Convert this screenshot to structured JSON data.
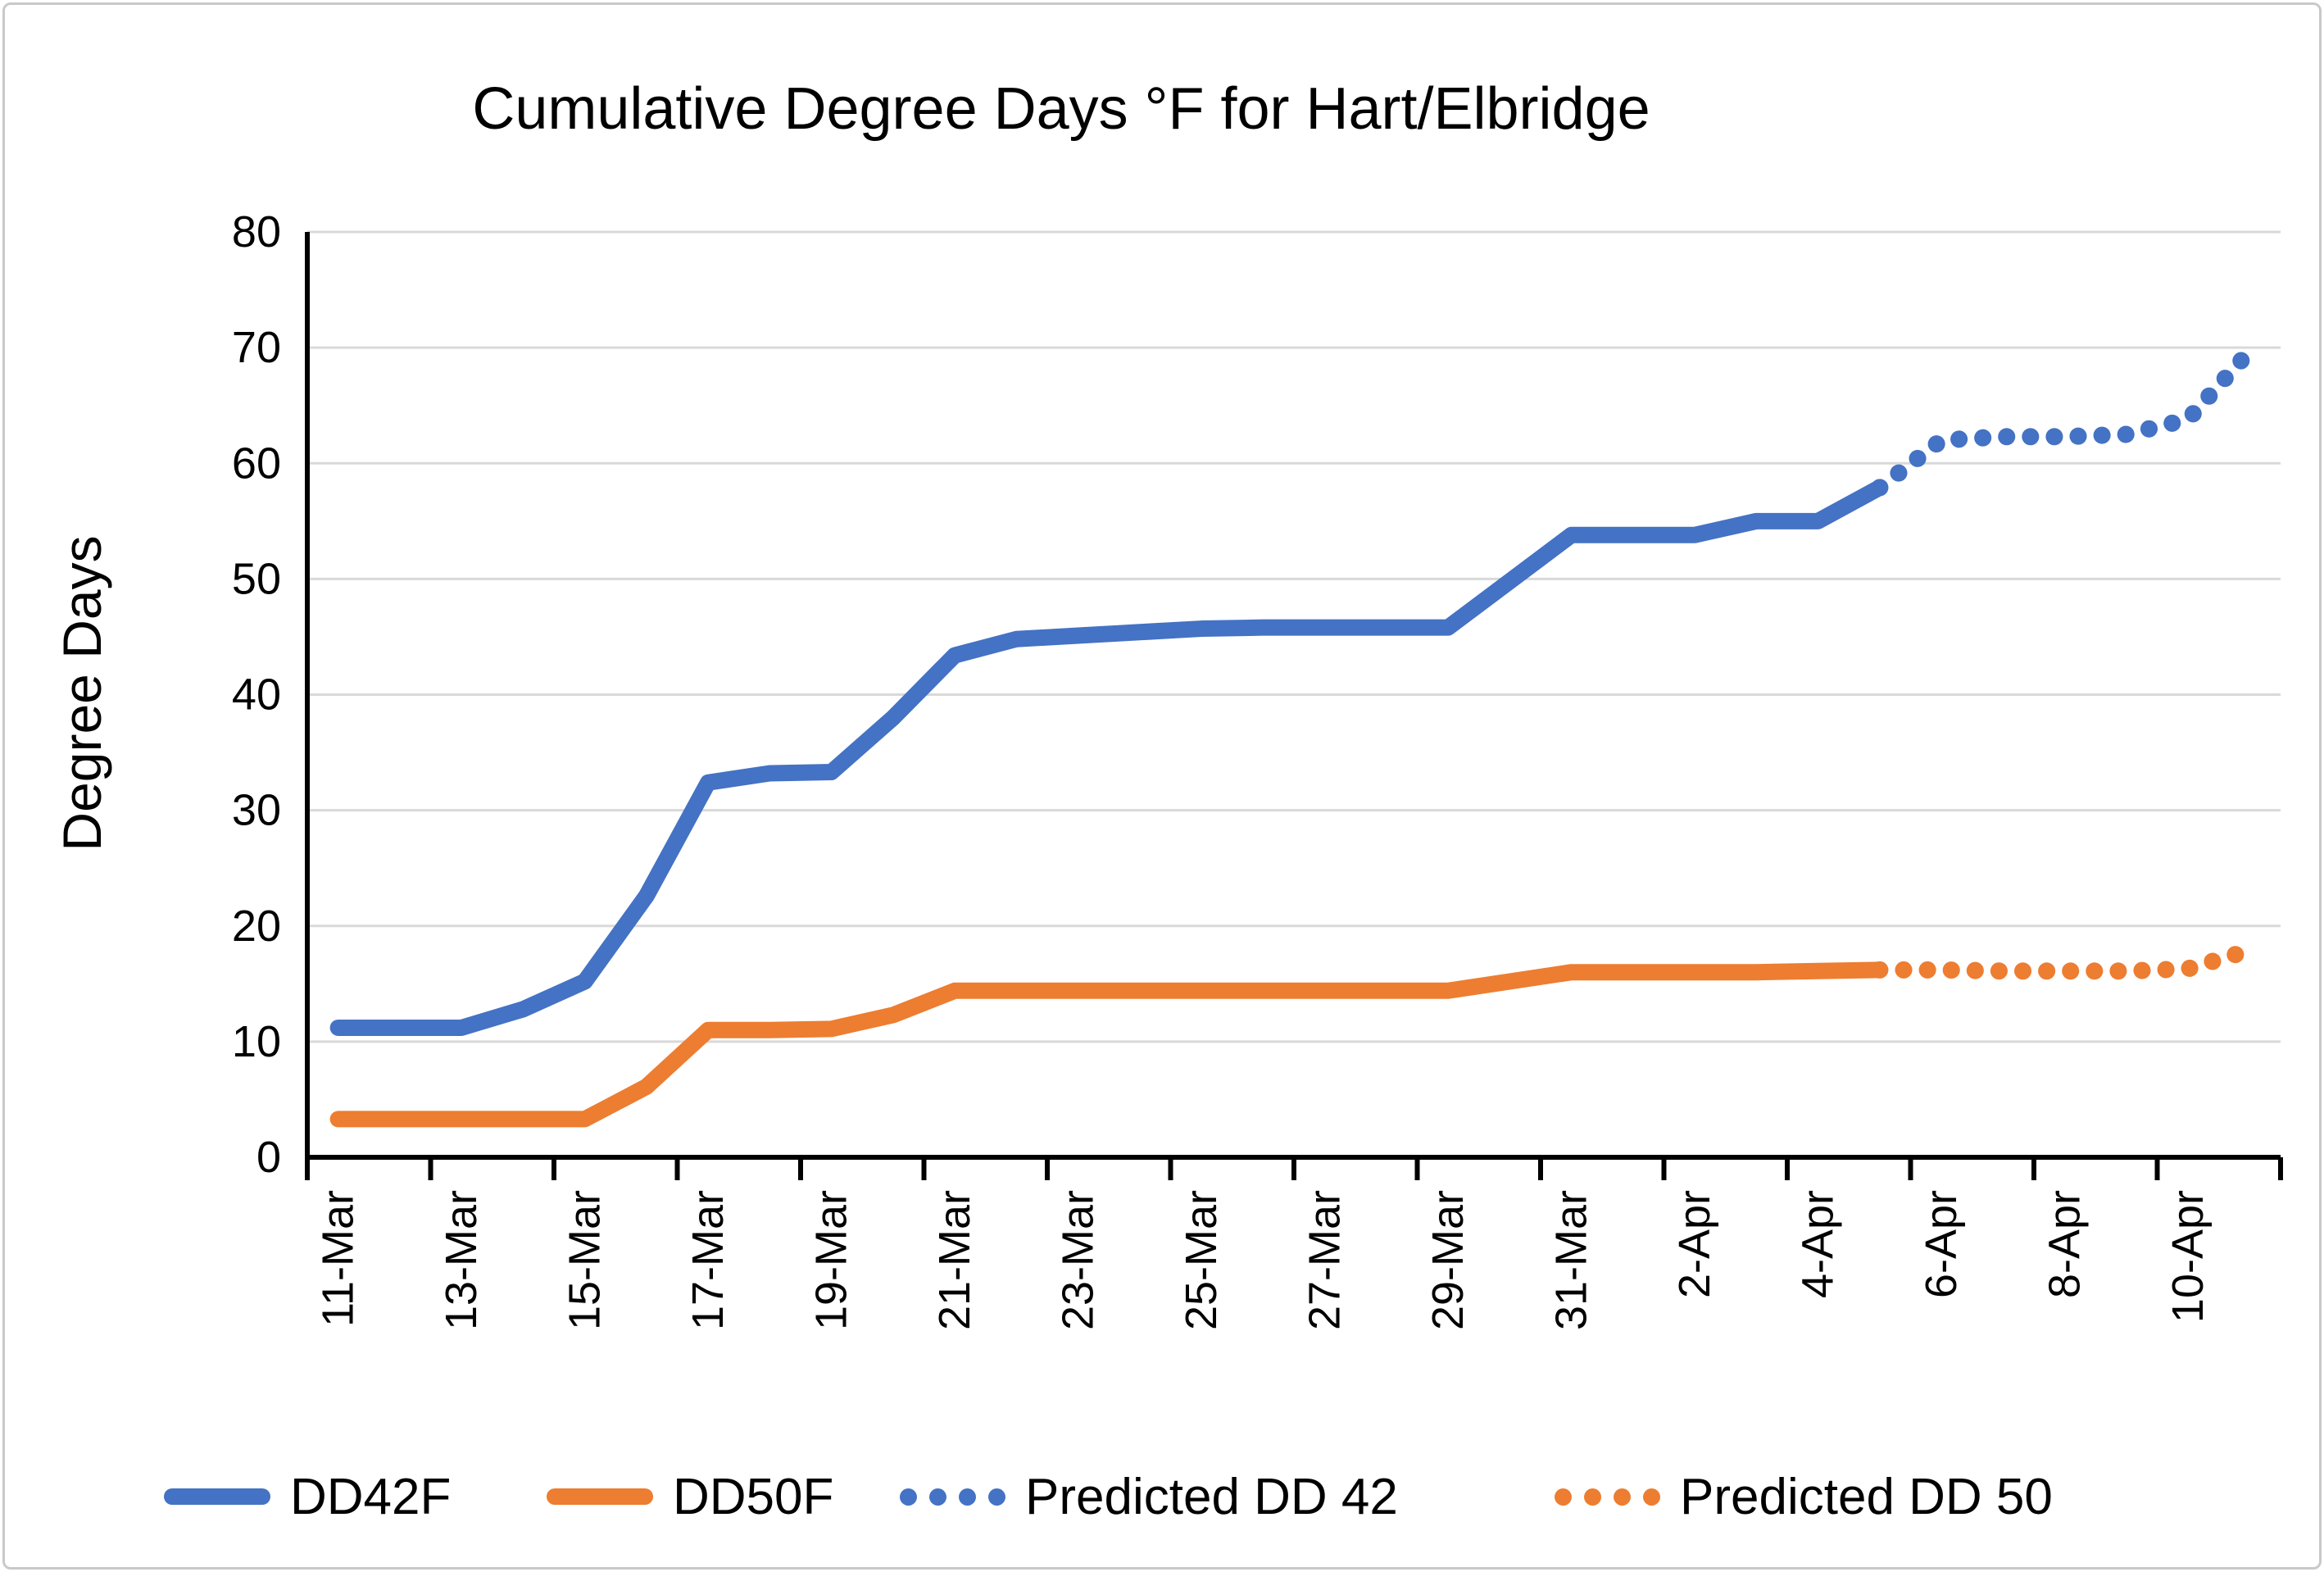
{
  "chart_data": {
    "type": "line",
    "title": "Cumulative Degree Days °F for Hart/Elbridge",
    "ylabel": "Degree Days",
    "xlabel": "",
    "ylim": [
      0,
      80
    ],
    "y_tick_step": 10,
    "y_ticks": [
      0,
      10,
      20,
      30,
      40,
      50,
      60,
      70,
      80
    ],
    "grid": "horizontal-only",
    "gridline_color": "#D9D9D9",
    "axis_color": "#000000",
    "legend_position": "bottom",
    "categories": [
      "11-Mar",
      "12-Mar",
      "13-Mar",
      "14-Mar",
      "15-Mar",
      "16-Mar",
      "17-Mar",
      "18-Mar",
      "19-Mar",
      "20-Mar",
      "21-Mar",
      "22-Mar",
      "23-Mar",
      "24-Mar",
      "25-Mar",
      "26-Mar",
      "27-Mar",
      "28-Mar",
      "29-Mar",
      "30-Mar",
      "31-Mar",
      "1-Apr",
      "2-Apr",
      "3-Apr",
      "4-Apr",
      "5-Apr",
      "6-Apr",
      "7-Apr",
      "8-Apr",
      "9-Apr",
      "10-Apr",
      "11-Apr"
    ],
    "x_tick_labels": [
      "11-Mar",
      "13-Mar",
      "15-Mar",
      "17-Mar",
      "19-Mar",
      "21-Mar",
      "23-Mar",
      "25-Mar",
      "27-Mar",
      "29-Mar",
      "31-Mar",
      "2-Apr",
      "4-Apr",
      "6-Apr",
      "8-Apr",
      "10-Apr"
    ],
    "series": [
      {
        "name": "DD42F",
        "style": "solid",
        "color": "#4472C4",
        "start_index": 0,
        "values": [
          11.2,
          11.2,
          11.2,
          12.8,
          15.2,
          22.6,
          32.4,
          33.2,
          33.3,
          38,
          43.4,
          44.8,
          45.1,
          45.4,
          45.7,
          45.8,
          45.8,
          45.8,
          45.8,
          49.8,
          53.8,
          53.8,
          53.8,
          55,
          55,
          57.9
        ]
      },
      {
        "name": "DD50F",
        "style": "solid",
        "color": "#ED7D31",
        "start_index": 0,
        "values": [
          3.3,
          3.3,
          3.3,
          3.3,
          3.3,
          6.1,
          11,
          11,
          11.1,
          12.3,
          14.4,
          14.4,
          14.4,
          14.4,
          14.4,
          14.4,
          14.4,
          14.4,
          14.4,
          15.2,
          16,
          16,
          16,
          16,
          16.1,
          16.2
        ]
      },
      {
        "name": "Predicted DD 42",
        "style": "dotted",
        "color": "#4472C4",
        "start_index": 25,
        "values": [
          57.9,
          62,
          62.3,
          62.3,
          62.5,
          63.8,
          69.7
        ]
      },
      {
        "name": "Predicted DD 50",
        "style": "dotted",
        "color": "#ED7D31",
        "start_index": 25,
        "values": [
          16.2,
          16.2,
          16.1,
          16.1,
          16.1,
          16.3,
          17.9
        ]
      }
    ]
  }
}
